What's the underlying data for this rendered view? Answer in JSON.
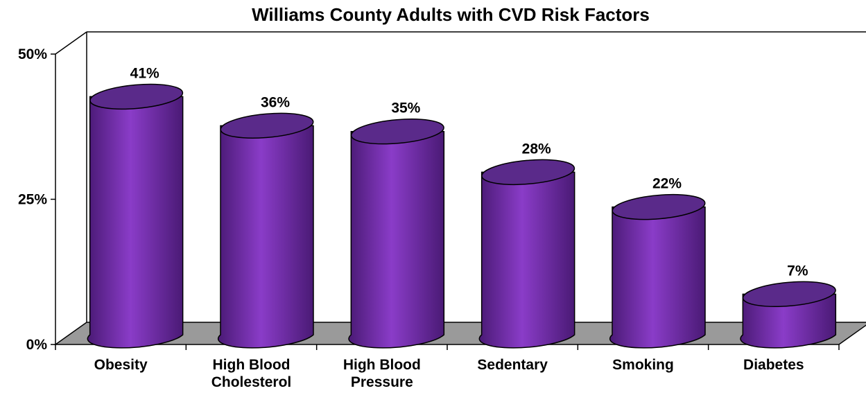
{
  "chart_data": {
    "type": "bar",
    "style": "3d-cylinder",
    "title": "Williams County Adults with CVD Risk Factors",
    "categories": [
      [
        "Obesity"
      ],
      [
        "High Blood",
        "Cholesterol"
      ],
      [
        "High Blood",
        "Pressure"
      ],
      [
        "Sedentary"
      ],
      [
        "Smoking"
      ],
      [
        "Diabetes"
      ]
    ],
    "values": [
      41,
      36,
      35,
      28,
      22,
      7
    ],
    "data_labels": [
      "41%",
      "36%",
      "35%",
      "28%",
      "22%",
      "7%"
    ],
    "ylim": [
      0,
      50
    ],
    "y_ticks": [
      0,
      25,
      50
    ],
    "y_tick_labels": [
      "0%",
      "25%",
      "50%"
    ],
    "xlabel": "",
    "ylabel": "",
    "grid": false,
    "legend": "none",
    "colors": {
      "bar_dark": "#4a1a75",
      "bar_mid": "#8a3cc8",
      "bar_top": "#5a2a8a",
      "floor": "#9a9a9a",
      "axis": "#000000"
    }
  }
}
